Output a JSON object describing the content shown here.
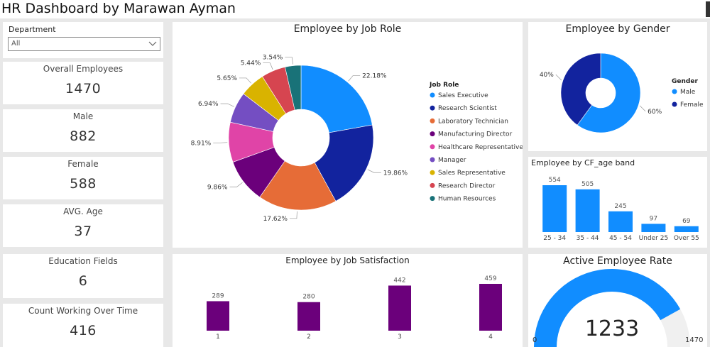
{
  "app": {
    "title": "HR Dashboard by Marawan Ayman"
  },
  "slicer": {
    "label": "Department",
    "value": "All"
  },
  "kpis": [
    {
      "label": "Overall Employees",
      "value": "1470"
    },
    {
      "label": "Male",
      "value": "882"
    },
    {
      "label": "Female",
      "value": "588"
    },
    {
      "label": "AVG. Age",
      "value": "37"
    },
    {
      "label": "Education Fields",
      "value": "6"
    },
    {
      "label": "Count Working Over Time",
      "value": "416"
    }
  ],
  "job_role": {
    "title": "Employee by Job Role",
    "legend_title": "Job Role",
    "slices": [
      {
        "name": "Sales Executive",
        "pct": 22.18,
        "label": "22.18%",
        "color": "#118DFF"
      },
      {
        "name": "Research Scientist",
        "pct": 19.86,
        "label": "19.86%",
        "color": "#12239E"
      },
      {
        "name": "Laboratory Technician",
        "pct": 17.62,
        "label": "17.62%",
        "color": "#E66C37"
      },
      {
        "name": "Manufacturing Director",
        "pct": 9.86,
        "label": "9.86%",
        "color": "#6B007B"
      },
      {
        "name": "Healthcare Representative",
        "pct": 8.91,
        "label": "8.91%",
        "color": "#E044A7"
      },
      {
        "name": "Manager",
        "pct": 6.94,
        "label": "6.94%",
        "color": "#744EC2"
      },
      {
        "name": "Sales Representative",
        "pct": 5.65,
        "label": "5.65%",
        "color": "#D9B300"
      },
      {
        "name": "Research Director",
        "pct": 5.44,
        "label": "5.44%",
        "color": "#D64550"
      },
      {
        "name": "Human Resources",
        "pct": 3.54,
        "label": "3.54%",
        "color": "#197278"
      }
    ]
  },
  "gender": {
    "title": "Employee by Gender",
    "legend_title": "Gender",
    "slices": [
      {
        "name": "Male",
        "pct": 60,
        "label": "60%",
        "color": "#118DFF"
      },
      {
        "name": "Female",
        "pct": 40,
        "label": "40%",
        "color": "#12239E"
      }
    ]
  },
  "chart_data": [
    {
      "type": "pie",
      "title": "Employee by Job Role",
      "categories": [
        "Sales Executive",
        "Research Scientist",
        "Laboratory Technician",
        "Manufacturing Director",
        "Healthcare Representative",
        "Manager",
        "Sales Representative",
        "Research Director",
        "Human Resources"
      ],
      "values": [
        22.18,
        19.86,
        17.62,
        9.86,
        8.91,
        6.94,
        5.65,
        5.44,
        3.54
      ],
      "legend": "right"
    },
    {
      "type": "pie",
      "title": "Employee by Gender",
      "categories": [
        "Male",
        "Female"
      ],
      "values": [
        60,
        40
      ],
      "legend": "right"
    },
    {
      "type": "bar",
      "title": "Employee by CF_age band",
      "categories": [
        "25 - 34",
        "35 - 44",
        "45 - 54",
        "Under 25",
        "Over 55"
      ],
      "values": [
        554,
        505,
        245,
        97,
        69
      ],
      "color": "#118DFF"
    },
    {
      "type": "bar",
      "title": "Employee by Job Satisfaction",
      "categories": [
        "1",
        "2",
        "3",
        "4"
      ],
      "values": [
        289,
        280,
        442,
        459
      ],
      "color": "#6B007B"
    }
  ],
  "gauge": {
    "title": "Active Employee Rate",
    "value": 1233,
    "value_label": "1233",
    "min_label": "0",
    "max_label": "1470",
    "min": 0,
    "max": 1470,
    "fill_color": "#118DFF",
    "track_color": "#F0F0F0"
  }
}
